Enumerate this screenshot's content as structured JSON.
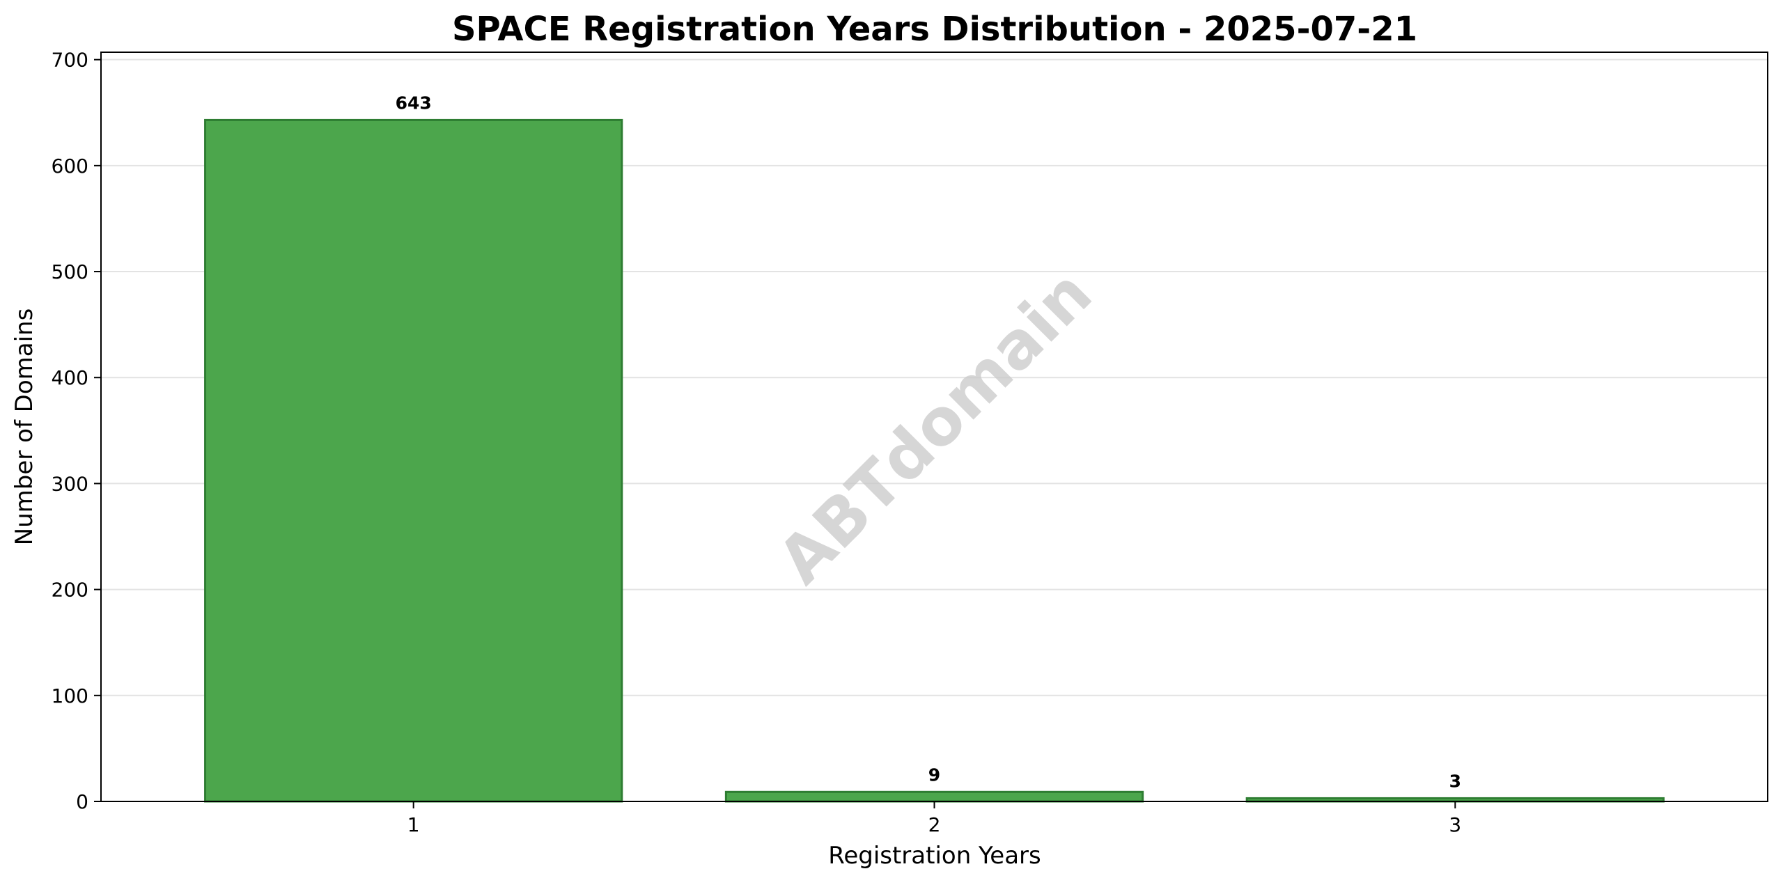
{
  "chart_data": {
    "type": "bar",
    "title": "SPACE Registration Years Distribution - 2025-07-21",
    "xlabel": "Registration Years",
    "ylabel": "Number of Domains",
    "categories": [
      "1",
      "2",
      "3"
    ],
    "values": [
      643,
      9,
      3
    ],
    "data_labels": [
      "643",
      "9",
      "3"
    ],
    "ylim": [
      0,
      707
    ],
    "yticks": [
      0,
      100,
      200,
      300,
      400,
      500,
      600,
      700
    ],
    "ytick_labels": [
      "0",
      "100",
      "200",
      "300",
      "400",
      "500",
      "600",
      "700"
    ],
    "grid": "y",
    "legend": "none",
    "bar_color": "#4ca64c",
    "bar_edge_color": "#2e7d32",
    "grid_color": "#e3e3e3",
    "watermark": "ABTdomain"
  }
}
